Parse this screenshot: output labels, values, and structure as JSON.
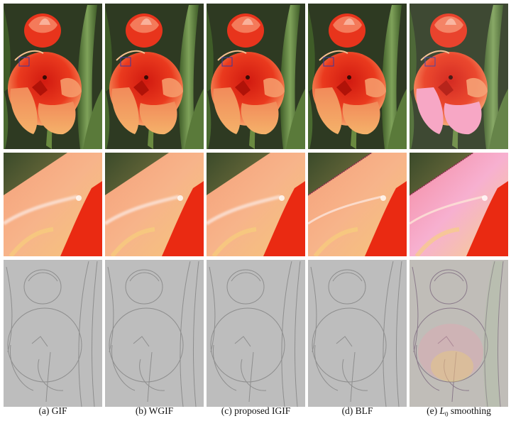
{
  "figure": {
    "panels": [
      {
        "id": "a",
        "label": "(a) GIF"
      },
      {
        "id": "b",
        "label": "(b) WGIF"
      },
      {
        "id": "c",
        "label": "(c) proposed IGIF"
      },
      {
        "id": "d",
        "label": "(d) BLF"
      },
      {
        "id": "e",
        "label": "(e) L0 smoothing",
        "label_prefix": "(e) ",
        "label_math": "L",
        "label_sub": "0",
        "label_suffix": " smoothing"
      }
    ],
    "rows": [
      "smoothed-image",
      "zoomed-detail",
      "detail-layer"
    ]
  },
  "colors": {
    "tulip_red": "#e8341c",
    "tulip_orange": "#f28a4a",
    "leaf_green": "#5a7a3a",
    "background_dark": "#2e3a22",
    "detail_gray": "#b9b9b9",
    "zoom_box": "#3a3aa0"
  }
}
